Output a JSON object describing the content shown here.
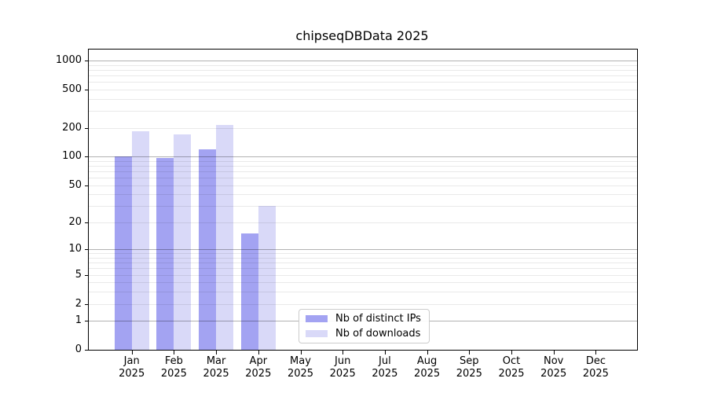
{
  "chart_data": {
    "type": "bar",
    "title": "chipseqDBData 2025",
    "xlabel": "",
    "ylabel": "",
    "year": "2025",
    "categories": [
      "Jan",
      "Feb",
      "Mar",
      "Apr",
      "May",
      "Jun",
      "Jul",
      "Aug",
      "Sep",
      "Oct",
      "Nov",
      "Dec"
    ],
    "series": [
      {
        "name": "Nb of distinct IPs",
        "color": "#a3a3f2",
        "values": [
          100,
          96,
          120,
          15,
          null,
          null,
          null,
          null,
          null,
          null,
          null,
          null
        ]
      },
      {
        "name": "Nb of downloads",
        "color": "#d9d9f8",
        "values": [
          185,
          170,
          215,
          30,
          null,
          null,
          null,
          null,
          null,
          null,
          null,
          null
        ]
      }
    ],
    "y_scale": "log1p",
    "y_ticks": [
      0,
      1,
      2,
      5,
      10,
      20,
      50,
      100,
      200,
      500,
      1000
    ],
    "ylim": [
      0,
      1150
    ],
    "grid": "horizontal major+minor, drawn over bars",
    "legend_position": "inside lower-center-left",
    "colors": {
      "grid_minor": "rgba(0,0,0,0.085)",
      "grid_major": "rgba(0,0,0,0.30)",
      "axis": "#000000",
      "legend_border": "#cccccc"
    }
  }
}
